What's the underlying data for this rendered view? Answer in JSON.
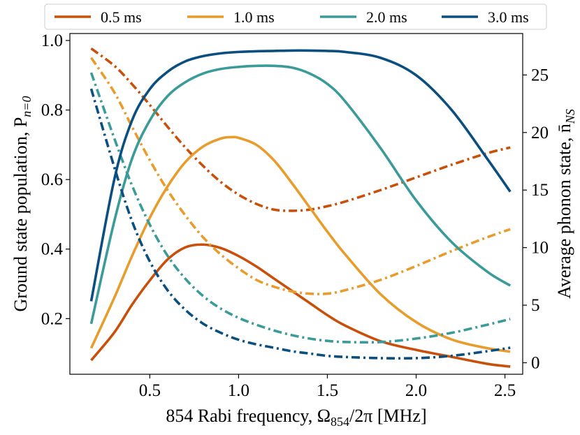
{
  "chart_data": {
    "type": "line",
    "xlabel": "854 Rabi frequency, Ω",
    "xlabel_sub": "854",
    "xlabel_tail": "/2π [MHz]",
    "ylabel_left": "Ground state population, P",
    "ylabel_left_sub": "n=0",
    "ylabel_right": "Average phonon state, n̄",
    "ylabel_right_sub": "NS",
    "xlim": [
      0.05,
      2.6
    ],
    "ylim_left": [
      0.04,
      1.02
    ],
    "ylim_right": [
      -1.0,
      28.6
    ],
    "x_ticks": [
      0.5,
      1.0,
      1.5,
      2.0,
      2.5
    ],
    "x_tick_labels": [
      "0.5",
      "1.0",
      "1.5",
      "2.0",
      "2.5"
    ],
    "yleft_ticks": [
      0.2,
      0.4,
      0.6,
      0.8,
      1.0
    ],
    "yleft_tick_labels": [
      "0.2",
      "0.4",
      "0.6",
      "0.8",
      "1.0"
    ],
    "yright_ticks": [
      0,
      5,
      10,
      15,
      20,
      25
    ],
    "yright_tick_labels": [
      "0",
      "5",
      "10",
      "15",
      "20",
      "25"
    ],
    "grid": false,
    "legend_position": "top, above plot",
    "series": [
      {
        "name": "0.5 ms",
        "color": "#c8500a",
        "ground_state": {
          "x": [
            0.17,
            0.3,
            0.4,
            0.5,
            0.6,
            0.7,
            0.8,
            0.9,
            1.0,
            1.1,
            1.2,
            1.3,
            1.4,
            1.5,
            1.6,
            1.8,
            2.0,
            2.2,
            2.4,
            2.53
          ],
          "y": [
            0.08,
            0.16,
            0.24,
            0.31,
            0.37,
            0.405,
            0.413,
            0.403,
            0.38,
            0.35,
            0.315,
            0.28,
            0.245,
            0.21,
            0.18,
            0.135,
            0.11,
            0.09,
            0.07,
            0.062
          ]
        },
        "phonon": {
          "x": [
            0.17,
            0.3,
            0.4,
            0.5,
            0.6,
            0.7,
            0.8,
            0.9,
            1.0,
            1.1,
            1.2,
            1.3,
            1.4,
            1.5,
            1.6,
            1.8,
            2.0,
            2.2,
            2.4,
            2.53
          ],
          "y": [
            27.3,
            25.8,
            24.2,
            22.4,
            20.5,
            18.7,
            17.1,
            15.7,
            14.6,
            13.8,
            13.3,
            13.2,
            13.3,
            13.6,
            14.0,
            15.0,
            16.1,
            17.2,
            18.2,
            18.7
          ]
        }
      },
      {
        "name": "1.0 ms",
        "color": "#e89c2c",
        "ground_state": {
          "x": [
            0.17,
            0.3,
            0.4,
            0.5,
            0.6,
            0.7,
            0.8,
            0.9,
            0.96,
            1.0,
            1.1,
            1.2,
            1.3,
            1.4,
            1.5,
            1.6,
            1.8,
            2.0,
            2.2,
            2.4,
            2.53
          ],
          "y": [
            0.115,
            0.26,
            0.38,
            0.49,
            0.58,
            0.65,
            0.695,
            0.718,
            0.722,
            0.72,
            0.7,
            0.655,
            0.59,
            0.52,
            0.45,
            0.385,
            0.27,
            0.19,
            0.14,
            0.115,
            0.105
          ]
        },
        "phonon": {
          "x": [
            0.17,
            0.3,
            0.4,
            0.5,
            0.6,
            0.7,
            0.8,
            0.9,
            1.0,
            1.1,
            1.2,
            1.3,
            1.4,
            1.5,
            1.6,
            1.8,
            2.0,
            2.2,
            2.4,
            2.53
          ],
          "y": [
            26.5,
            23.5,
            20.5,
            17.6,
            15.0,
            12.8,
            10.9,
            9.4,
            8.2,
            7.2,
            6.6,
            6.2,
            6.0,
            6.0,
            6.3,
            7.2,
            8.4,
            9.7,
            10.9,
            11.6
          ]
        }
      },
      {
        "name": "2.0 ms",
        "color": "#3a9b98",
        "ground_state": {
          "x": [
            0.17,
            0.3,
            0.4,
            0.5,
            0.6,
            0.7,
            0.8,
            0.9,
            1.0,
            1.1,
            1.2,
            1.3,
            1.4,
            1.5,
            1.6,
            1.8,
            2.0,
            2.2,
            2.4,
            2.53
          ],
          "y": [
            0.185,
            0.48,
            0.66,
            0.77,
            0.84,
            0.88,
            0.905,
            0.918,
            0.924,
            0.927,
            0.927,
            0.922,
            0.905,
            0.875,
            0.825,
            0.69,
            0.54,
            0.42,
            0.335,
            0.295
          ]
        },
        "phonon": {
          "x": [
            0.17,
            0.3,
            0.4,
            0.5,
            0.6,
            0.7,
            0.8,
            0.9,
            1.0,
            1.1,
            1.2,
            1.3,
            1.4,
            1.5,
            1.6,
            1.8,
            2.0,
            2.2,
            2.4,
            2.53
          ],
          "y": [
            25.2,
            19.5,
            15.4,
            12.0,
            9.3,
            7.3,
            5.8,
            4.7,
            3.9,
            3.3,
            2.8,
            2.4,
            2.1,
            1.9,
            1.8,
            1.8,
            2.1,
            2.6,
            3.3,
            3.8
          ]
        }
      },
      {
        "name": "3.0 ms",
        "color": "#0a4f80",
        "ground_state": {
          "x": [
            0.17,
            0.3,
            0.4,
            0.5,
            0.6,
            0.7,
            0.8,
            0.9,
            1.0,
            1.1,
            1.2,
            1.3,
            1.4,
            1.5,
            1.6,
            1.8,
            2.0,
            2.2,
            2.4,
            2.53
          ],
          "y": [
            0.25,
            0.6,
            0.77,
            0.86,
            0.91,
            0.94,
            0.955,
            0.963,
            0.967,
            0.969,
            0.97,
            0.971,
            0.971,
            0.97,
            0.967,
            0.95,
            0.9,
            0.8,
            0.66,
            0.565
          ]
        },
        "phonon": {
          "x": [
            0.17,
            0.3,
            0.4,
            0.5,
            0.6,
            0.7,
            0.8,
            0.9,
            1.0,
            1.1,
            1.2,
            1.3,
            1.4,
            1.5,
            1.6,
            1.8,
            2.0,
            2.2,
            2.4,
            2.53
          ],
          "y": [
            23.8,
            17.0,
            12.3,
            8.8,
            6.3,
            4.6,
            3.4,
            2.6,
            2.0,
            1.6,
            1.3,
            1.0,
            0.8,
            0.6,
            0.5,
            0.4,
            0.4,
            0.6,
            1.0,
            1.3
          ]
        }
      }
    ]
  }
}
